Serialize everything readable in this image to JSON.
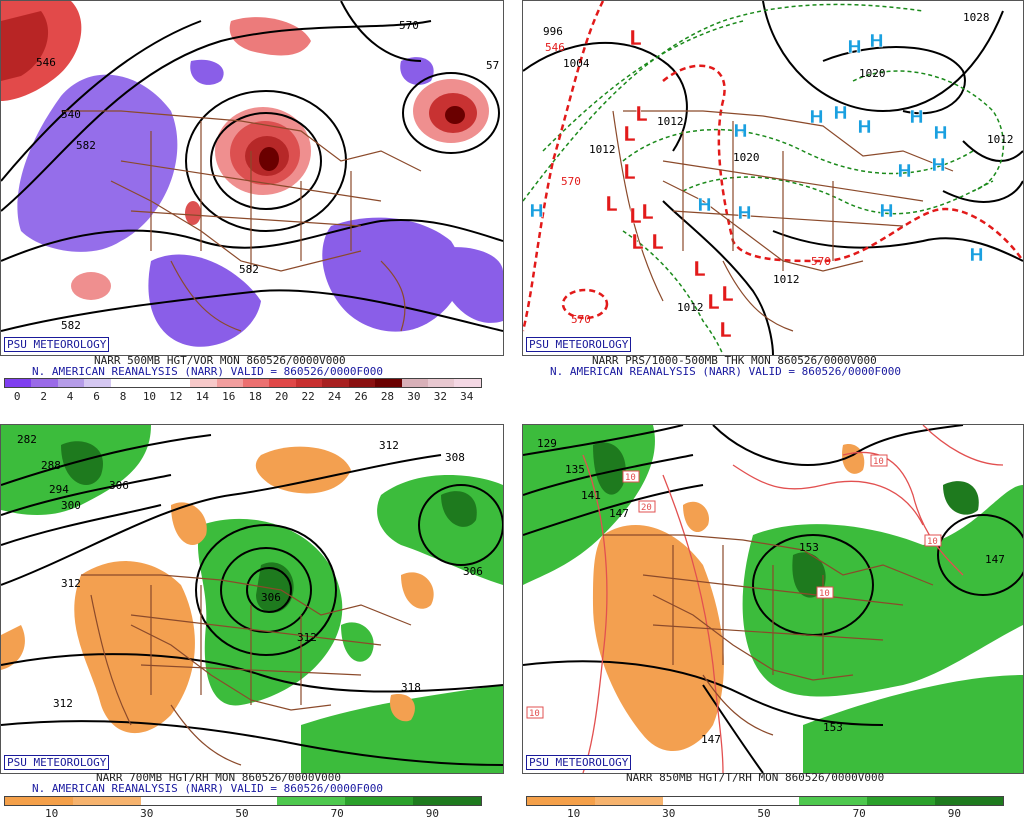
{
  "panels": [
    {
      "id": "p1",
      "badge": "PSU METEOROLOGY",
      "line1": "NARR 500MB HGT/VOR MON 860526/0000V000",
      "line2": "N. AMERICAN REANALYSIS (NARR) VALID = 860526/0000F000",
      "scale_labels": [
        "0",
        "2",
        "4",
        "6",
        "8",
        "10",
        "12",
        "14",
        "16",
        "18",
        "20",
        "22",
        "24",
        "26",
        "28",
        "30",
        "32",
        "34"
      ],
      "scale_colors": [
        "#7f3ff0",
        "#9a6ae8",
        "#b59ce8",
        "#d5c8f2",
        "#ffffff",
        "#ffffff",
        "#ffffff",
        "#f7c9c9",
        "#f29e9e",
        "#ec7070",
        "#e04848",
        "#c83030",
        "#a82020",
        "#8a1010",
        "#6a0000",
        "#d8b0b8",
        "#e8c8d0",
        "#f4d8e4"
      ],
      "contours": [
        "546",
        "540",
        "582",
        "582",
        "570",
        "582",
        "57"
      ]
    },
    {
      "id": "p2",
      "badge": "PSU METEOROLOGY",
      "line1": "NARR PRS/1000-500MB THK MON 860526/0000V000",
      "line2": "N. AMERICAN REANALYSIS (NARR) VALID = 860526/0000F000",
      "contours": [
        "996",
        "546",
        "1004",
        "1012",
        "1012",
        "570",
        "1020",
        "1020",
        "1012",
        "1012",
        "570",
        "1012",
        "570",
        "1028"
      ],
      "highs": "H",
      "lows": "L"
    },
    {
      "id": "p3",
      "badge": "PSU METEOROLOGY",
      "line1": "NARR 700MB HGT/RH MON 860526/0000V000",
      "line2": "N. AMERICAN REANALYSIS (NARR) VALID = 860526/0000F000",
      "scale_labels": [
        "10",
        "30",
        "50",
        "70",
        "90"
      ],
      "scale_colors": [
        "#f4a04a",
        "#f6b36e",
        "#ffffff",
        "#ffffff",
        "#4ec84e",
        "#2ba02b",
        "#1e7a1e"
      ],
      "contours": [
        "282",
        "288",
        "294",
        "300",
        "306",
        "312",
        "308",
        "306",
        "312",
        "312",
        "318",
        "306"
      ]
    },
    {
      "id": "p4",
      "badge": "PSU METEOROLOGY",
      "line1": "NARR 850MB HGT/T/RH MON 860526/0000V000",
      "scale_labels": [
        "10",
        "30",
        "50",
        "70",
        "90"
      ],
      "scale_colors": [
        "#f4a04a",
        "#f6b36e",
        "#ffffff",
        "#ffffff",
        "#4ec84e",
        "#2ba02b",
        "#1e7a1e"
      ],
      "contours": [
        "129",
        "135",
        "141",
        "147",
        "153",
        "147",
        "153",
        "147",
        "10",
        "10",
        "20",
        "10",
        "10",
        "10"
      ]
    }
  ]
}
